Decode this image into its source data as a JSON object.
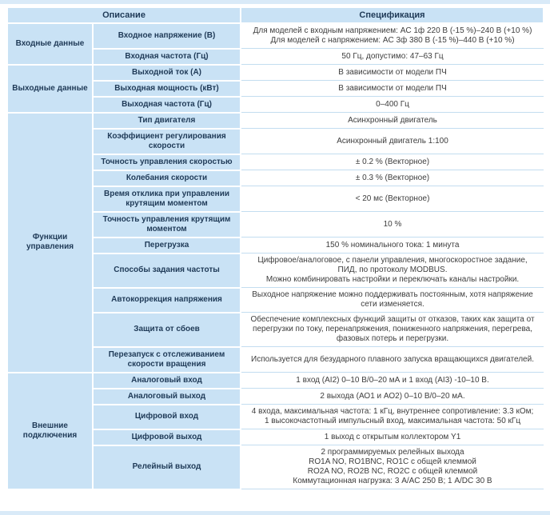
{
  "colors": {
    "cell_blue": "#c9e2f5",
    "strip_blue": "#d9eaf8",
    "separator_blue": "#c3ddf0",
    "heading_navy": "#1f3a57",
    "spec_text": "#3d3d3d"
  },
  "table": {
    "headers": [
      "Описание",
      "Спецификация"
    ],
    "categories": [
      {
        "label": "Входные данные"
      },
      {
        "label": "Выходные данные"
      },
      {
        "label": "Функции управления"
      },
      {
        "label": "Внешние подключения"
      }
    ],
    "rows": [
      {
        "desc": "Входное напряжение (В)",
        "spec": "Для моделей с входным напряжением: AC 1ф 220 В (-15 %)–240 В (+10 %)\nДля моделей с напряжением: AC 3ф 380 В (-15 %)–440 В (+10 %)"
      },
      {
        "desc": "Входная частота (Гц)",
        "spec": "50 Гц, допустимо: 47–63 Гц"
      },
      {
        "desc": "Выходной ток (А)",
        "spec": "В зависимости от модели ПЧ"
      },
      {
        "desc": "Выходная мощность (кВт)",
        "spec": "В зависимости от модели ПЧ"
      },
      {
        "desc": "Выходная частота (Гц)",
        "spec": "0–400 Гц"
      },
      {
        "desc": "Тип двигателя",
        "spec": "Асинхронный двигатель"
      },
      {
        "desc": "Коэффициент регулирования скорости",
        "spec": "Асинхронный двигатель 1:100"
      },
      {
        "desc": "Точность управления скоростью",
        "spec": "± 0.2 % (Векторное)"
      },
      {
        "desc": "Колебания скорости",
        "spec": "± 0.3 % (Векторное)"
      },
      {
        "desc": "Время отклика при управлении крутящим моментом",
        "spec": "< 20 мс (Векторное)"
      },
      {
        "desc": "Точность управления крутящим моментом",
        "spec": "10 %"
      },
      {
        "desc": "Перегрузка",
        "spec": "150 % номинального тока: 1 минута"
      },
      {
        "desc": "Способы задания частоты",
        "spec": "Цифровое/аналоговое, с панели управления, многоскоростное задание,\nПИД, по протоколу MODBUS.\nМожно комбинировать настройки и переключать каналы настройки."
      },
      {
        "desc": "Автокоррекция напряжения",
        "spec": "Выходное напряжение можно поддерживать постоянным, хотя напряжение сети изменяется."
      },
      {
        "desc": "Защита от сбоев",
        "spec": "Обеспечение комплексных функций защиты от отказов, таких как защита от перегрузки по току, перенапряжения, пониженного напряжения, перегрева, фазовых потерь и перегрузки."
      },
      {
        "desc": "Перезапуск с отслеживанием скорости вращения",
        "spec": "Используется для безударного плавного запуска вращающихся двигателей."
      },
      {
        "desc": "Аналоговый вход",
        "spec": "1 вход (AI2) 0–10 В/0–20 мА и 1 вход (AI3) -10–10 В."
      },
      {
        "desc": "Аналоговый выход",
        "spec": "2 выхода (АО1 и АО2) 0–10 В/0–20 мА."
      },
      {
        "desc": "Цифровой вход",
        "spec": "4 входа, максимальная частота: 1 кГц, внутреннее сопротивление: 3.3 кОм;\n1 высокочастотный импульсный вход, максимальная частота: 50 кГц"
      },
      {
        "desc": "Цифровой выход",
        "spec": "1 выход с открытым коллектором Y1"
      },
      {
        "desc": "Релейный выход",
        "spec": "2 программируемых релейных выхода\nRO1A NO, RO1BNC, RO1C с общей клеммой\nRO2A NO, RO2B NC, RO2C с общей клеммой\nКоммутационная нагрузка: 3 А/AC 250 В; 1 А/DC 30 В"
      }
    ]
  }
}
